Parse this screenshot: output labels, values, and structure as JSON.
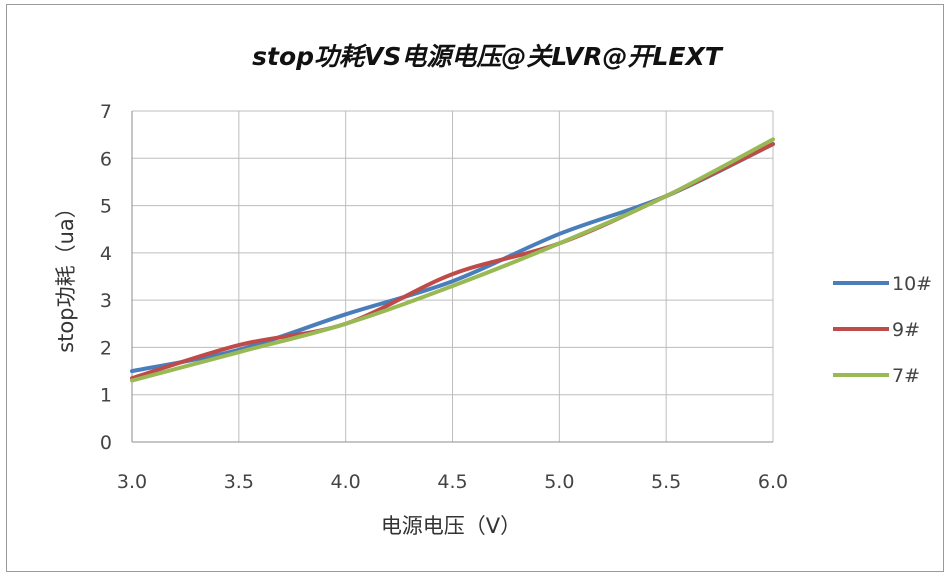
{
  "chart_data": {
    "type": "line",
    "title": "stop功耗VS电源电压@关LVR@开LEXT",
    "xlabel": "电源电压（V）",
    "ylabel": "stop功耗（ua）",
    "xlim": [
      3.0,
      6.0
    ],
    "ylim": [
      0,
      7
    ],
    "x_ticks": [
      "3.0",
      "3.5",
      "4.0",
      "4.5",
      "5.0",
      "5.5",
      "6.0"
    ],
    "y_ticks": [
      "0",
      "1",
      "2",
      "3",
      "4",
      "5",
      "6",
      "7"
    ],
    "grid": true,
    "legend_position": "right",
    "x": [
      3.0,
      3.5,
      4.0,
      4.5,
      5.0,
      5.5,
      6.0
    ],
    "series": [
      {
        "name": "10#",
        "color": "#4a7ebb",
        "values": [
          1.5,
          1.95,
          2.7,
          3.4,
          4.4,
          5.2,
          6.3
        ]
      },
      {
        "name": "9#",
        "color": "#be4b48",
        "values": [
          1.35,
          2.05,
          2.5,
          3.55,
          4.2,
          5.2,
          6.3
        ]
      },
      {
        "name": "7#",
        "color": "#98b954",
        "values": [
          1.3,
          1.9,
          2.5,
          3.3,
          4.2,
          5.2,
          6.4
        ]
      }
    ]
  }
}
